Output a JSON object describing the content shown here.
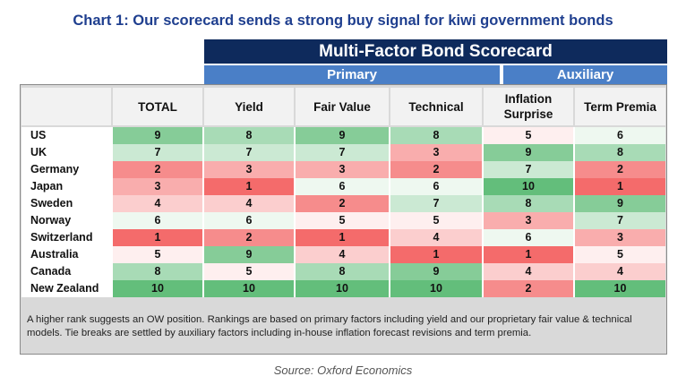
{
  "title": "Chart 1: Our scorecard sends a strong buy signal for kiwi government bonds",
  "header": {
    "main": "Multi-Factor Bond Scorecard",
    "primary": "Primary",
    "auxiliary": "Auxiliary"
  },
  "chart_data": {
    "type": "table",
    "title": "Multi-Factor Bond Scorecard",
    "columns": [
      "TOTAL",
      "Yield",
      "Fair Value",
      "Technical",
      "Inflation Surprise",
      "Term Premia"
    ],
    "column_lines": [
      [
        "TOTAL"
      ],
      [
        "Yield"
      ],
      [
        "Fair Value"
      ],
      [
        "Technical"
      ],
      [
        "Inflation",
        "Surprise"
      ],
      [
        "Term Premia"
      ]
    ],
    "rows": [
      {
        "country": "US",
        "values": [
          9,
          8,
          9,
          8,
          5,
          6
        ]
      },
      {
        "country": "UK",
        "values": [
          7,
          7,
          7,
          3,
          9,
          8
        ]
      },
      {
        "country": "Germany",
        "values": [
          2,
          3,
          3,
          2,
          7,
          2
        ]
      },
      {
        "country": "Japan",
        "values": [
          3,
          1,
          6,
          6,
          10,
          1
        ]
      },
      {
        "country": "Sweden",
        "values": [
          4,
          4,
          2,
          7,
          8,
          9
        ]
      },
      {
        "country": "Norway",
        "values": [
          6,
          6,
          5,
          5,
          3,
          7
        ]
      },
      {
        "country": "Switzerland",
        "values": [
          1,
          2,
          1,
          4,
          6,
          3
        ]
      },
      {
        "country": "Australia",
        "values": [
          5,
          9,
          4,
          1,
          1,
          5
        ]
      },
      {
        "country": "Canada",
        "values": [
          8,
          5,
          8,
          9,
          4,
          4
        ]
      },
      {
        "country": "New Zealand",
        "values": [
          10,
          10,
          10,
          10,
          2,
          10
        ]
      }
    ],
    "color_scale": {
      "low": "#f46b6b",
      "mid": "#ffffff",
      "high": "#63be7b"
    }
  },
  "note": "A higher rank suggests an OW position. Rankings are based on primary factors including yield and our proprietary fair value & technical models. Tie breaks are settled by auxiliary factors including in-house inflation forecast revisions and term premia.",
  "source": "Source: Oxford Economics"
}
